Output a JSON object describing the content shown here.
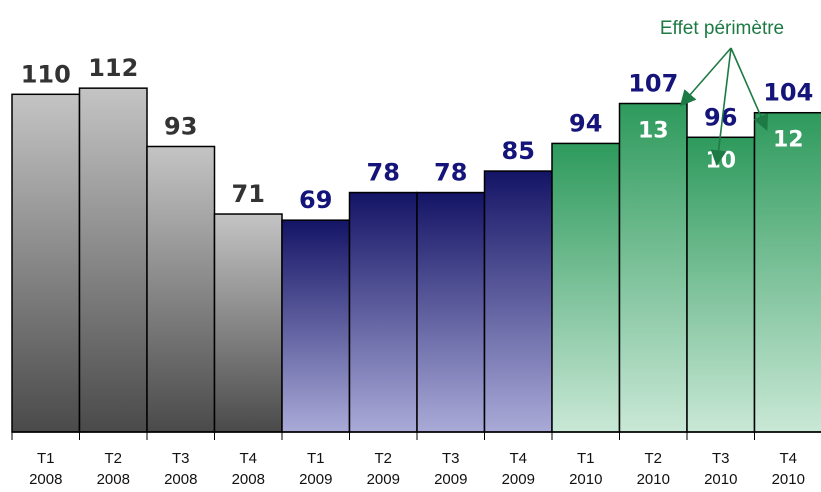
{
  "chart_data": {
    "type": "bar",
    "categories": [
      {
        "quarter": "T1",
        "year": "2008"
      },
      {
        "quarter": "T2",
        "year": "2008"
      },
      {
        "quarter": "T3",
        "year": "2008"
      },
      {
        "quarter": "T4",
        "year": "2008"
      },
      {
        "quarter": "T1",
        "year": "2009"
      },
      {
        "quarter": "T2",
        "year": "2009"
      },
      {
        "quarter": "T3",
        "year": "2009"
      },
      {
        "quarter": "T4",
        "year": "2009"
      },
      {
        "quarter": "T1",
        "year": "2010"
      },
      {
        "quarter": "T2",
        "year": "2010"
      },
      {
        "quarter": "T3",
        "year": "2010"
      },
      {
        "quarter": "T4",
        "year": "2010"
      }
    ],
    "values": [
      110,
      112,
      93,
      71,
      69,
      78,
      78,
      85,
      94,
      107,
      96,
      104
    ],
    "segment_labels": [
      null,
      null,
      null,
      null,
      null,
      null,
      null,
      null,
      null,
      13,
      10,
      12
    ],
    "annotation": "Effet périmètre",
    "annotation_targets": [
      9,
      10,
      11
    ],
    "year_groups": [
      {
        "year": "2008",
        "bar_top": "#c4c4c4",
        "bar_bottom": "#4a4a4a",
        "label_color": "#333333"
      },
      {
        "year": "2009",
        "bar_top": "#141466",
        "bar_bottom": "#aaaad8",
        "label_color": "#14147a"
      },
      {
        "year": "2010",
        "bar_top": "#2e9a5c",
        "bar_bottom": "#c9e8d6",
        "label_color": "#14147a"
      }
    ],
    "annotation_color": "#1e7a45",
    "ylim": [
      0,
      125
    ],
    "grid": false,
    "legend": "none",
    "xlabel": "",
    "ylabel": "",
    "title": ""
  }
}
